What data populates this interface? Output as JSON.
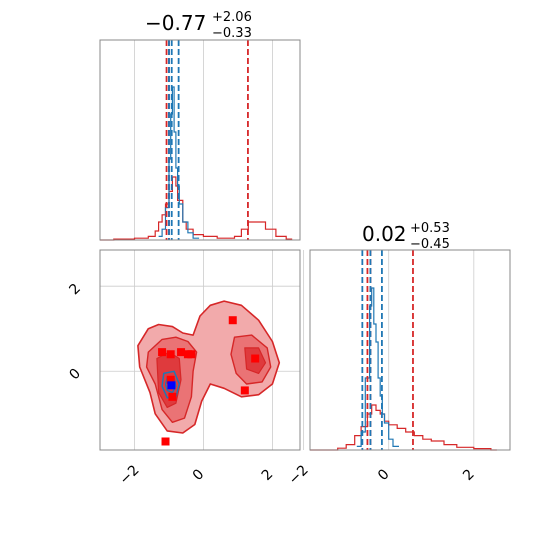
{
  "chart_data": {
    "type": "corner",
    "parameters": [
      {
        "title": {
          "value": "−0.77",
          "plus": "+2.06",
          "minus": "−0.33"
        }
      },
      {
        "title": {
          "value": "0.02",
          "plus": "+0.53",
          "minus": "−0.45"
        }
      }
    ],
    "xlim": [
      -3.0,
      2.8
    ],
    "ylim": [
      -1.85,
      2.85
    ],
    "ticks": [
      -2,
      0,
      2
    ],
    "tick_labels": [
      "−2",
      "0",
      "2"
    ],
    "grid": true,
    "colors": {
      "red": "#d62728",
      "blue": "#1f77b4",
      "fill_light": "#f2aaab",
      "fill_dark": "#df3a3d",
      "point_red": "#ff0000",
      "point_blue": "#0000ff"
    },
    "histogram_p1": {
      "red_steps": [
        [
          -3.0,
          0
        ],
        [
          -2.6,
          0.005
        ],
        [
          -2.0,
          0.01
        ],
        [
          -1.6,
          0.02
        ],
        [
          -1.4,
          0.05
        ],
        [
          -1.3,
          0.1
        ],
        [
          -1.2,
          0.14
        ],
        [
          -1.1,
          0.2
        ],
        [
          -1.0,
          0.27
        ],
        [
          -0.9,
          0.35
        ],
        [
          -0.8,
          0.3
        ],
        [
          -0.75,
          0.22
        ],
        [
          -0.6,
          0.1
        ],
        [
          -0.5,
          0.06
        ],
        [
          -0.3,
          0.03
        ],
        [
          0.0,
          0.02
        ],
        [
          0.4,
          0.01
        ],
        [
          0.9,
          0.02
        ],
        [
          1.1,
          0.06
        ],
        [
          1.3,
          0.1
        ],
        [
          1.5,
          0.1
        ],
        [
          1.8,
          0.06
        ],
        [
          2.1,
          0.02
        ],
        [
          2.4,
          0.005
        ]
      ],
      "blue_steps": [
        [
          -1.3,
          0.02
        ],
        [
          -1.2,
          0.06
        ],
        [
          -1.1,
          0.18
        ],
        [
          -1.0,
          0.45
        ],
        [
          -0.95,
          0.7
        ],
        [
          -0.9,
          0.85
        ],
        [
          -0.85,
          0.6
        ],
        [
          -0.8,
          0.4
        ],
        [
          -0.75,
          0.3
        ],
        [
          -0.7,
          0.2
        ],
        [
          -0.6,
          0.1
        ],
        [
          -0.45,
          0.04
        ],
        [
          -0.3,
          0.01
        ]
      ],
      "red_lines": [
        -1.07,
        -1.0,
        1.29
      ],
      "blue_lines": [
        -1.0,
        -0.92,
        -0.72
      ],
      "ymax": 1.0
    },
    "histogram_p2": {
      "red_steps": [
        [
          -1.85,
          0
        ],
        [
          -1.2,
          0.01
        ],
        [
          -1.0,
          0.03
        ],
        [
          -0.8,
          0.08
        ],
        [
          -0.65,
          0.13
        ],
        [
          -0.5,
          0.2
        ],
        [
          -0.4,
          0.25
        ],
        [
          -0.3,
          0.22
        ],
        [
          -0.2,
          0.2
        ],
        [
          -0.1,
          0.16
        ],
        [
          0.0,
          0.14
        ],
        [
          0.2,
          0.12
        ],
        [
          0.4,
          0.1
        ],
        [
          0.6,
          0.08
        ],
        [
          0.8,
          0.06
        ],
        [
          1.0,
          0.05
        ],
        [
          1.3,
          0.03
        ],
        [
          1.6,
          0.015
        ],
        [
          2.0,
          0.008
        ],
        [
          2.4,
          0.0
        ]
      ],
      "blue_steps": [
        [
          -0.75,
          0.02
        ],
        [
          -0.65,
          0.1
        ],
        [
          -0.55,
          0.4
        ],
        [
          -0.45,
          0.8
        ],
        [
          -0.4,
          0.9
        ],
        [
          -0.35,
          0.7
        ],
        [
          -0.3,
          0.6
        ],
        [
          -0.25,
          0.4
        ],
        [
          -0.2,
          0.3
        ],
        [
          -0.15,
          0.2
        ],
        [
          -0.1,
          0.15
        ],
        [
          0.0,
          0.06
        ],
        [
          0.1,
          0.02
        ]
      ],
      "red_lines": [
        -0.5,
        -0.43,
        0.57
      ],
      "blue_lines": [
        -0.62,
        -0.43,
        -0.16
      ],
      "ymax": 1.0
    },
    "scatter_red_points": [
      [
        -1.2,
        0.45
      ],
      [
        -0.95,
        0.4
      ],
      [
        -0.65,
        0.45
      ],
      [
        -0.45,
        0.4
      ],
      [
        -0.35,
        0.4
      ],
      [
        0.85,
        1.2
      ],
      [
        1.5,
        0.3
      ],
      [
        1.2,
        -0.45
      ],
      [
        -0.9,
        -0.6
      ],
      [
        -1.1,
        -1.65
      ],
      [
        -0.95,
        -0.2
      ]
    ],
    "scatter_blue_points": [
      [
        -0.93,
        -0.33
      ]
    ],
    "contours_red_outer": [
      [
        -1.9,
        0.6
      ],
      [
        -1.6,
        1.0
      ],
      [
        -1.3,
        1.1
      ],
      [
        -0.9,
        1.05
      ],
      [
        -0.6,
        0.9
      ],
      [
        -0.3,
        0.85
      ],
      [
        -0.1,
        1.3
      ],
      [
        0.2,
        1.55
      ],
      [
        0.6,
        1.65
      ],
      [
        1.1,
        1.55
      ],
      [
        1.6,
        1.2
      ],
      [
        2.0,
        0.7
      ],
      [
        2.2,
        0.2
      ],
      [
        2.0,
        -0.3
      ],
      [
        1.6,
        -0.55
      ],
      [
        1.1,
        -0.6
      ],
      [
        0.6,
        -0.4
      ],
      [
        0.2,
        -0.3
      ],
      [
        -0.05,
        -0.7
      ],
      [
        -0.25,
        -1.25
      ],
      [
        -0.6,
        -1.45
      ],
      [
        -1.05,
        -1.4
      ],
      [
        -1.4,
        -1.0
      ],
      [
        -1.55,
        -0.5
      ],
      [
        -1.85,
        0.1
      ]
    ],
    "contours_red_middle": [
      [
        -1.6,
        0.45
      ],
      [
        -1.2,
        0.75
      ],
      [
        -0.8,
        0.8
      ],
      [
        -0.45,
        0.7
      ],
      [
        -0.2,
        0.45
      ],
      [
        -0.3,
        0.0
      ],
      [
        -0.35,
        -0.6
      ],
      [
        -0.55,
        -1.1
      ],
      [
        -0.9,
        -1.2
      ],
      [
        -1.2,
        -0.9
      ],
      [
        -1.4,
        -0.3
      ],
      [
        -1.65,
        0.1
      ]
    ],
    "contours_red_middle_right": [
      [
        0.9,
        0.8
      ],
      [
        1.4,
        0.85
      ],
      [
        1.85,
        0.55
      ],
      [
        1.95,
        0.1
      ],
      [
        1.7,
        -0.25
      ],
      [
        1.25,
        -0.3
      ],
      [
        0.95,
        -0.05
      ],
      [
        0.8,
        0.4
      ]
    ],
    "contours_red_inner": [
      [
        -1.35,
        0.3
      ],
      [
        -1.0,
        0.45
      ],
      [
        -0.7,
        0.3
      ],
      [
        -0.65,
        -0.2
      ],
      [
        -0.8,
        -0.75
      ],
      [
        -1.05,
        -0.85
      ],
      [
        -1.3,
        -0.5
      ]
    ],
    "contours_red_inner_right": [
      [
        1.2,
        0.55
      ],
      [
        1.6,
        0.55
      ],
      [
        1.8,
        0.2
      ],
      [
        1.6,
        -0.05
      ],
      [
        1.25,
        0.05
      ]
    ],
    "contours_blue": [
      [
        -1.15,
        -0.05
      ],
      [
        -0.85,
        0.0
      ],
      [
        -0.7,
        -0.3
      ],
      [
        -0.8,
        -0.6
      ],
      [
        -1.05,
        -0.62
      ],
      [
        -1.2,
        -0.35
      ]
    ],
    "contours_blue_inner": [
      [
        -1.05,
        -0.15
      ],
      [
        -0.85,
        -0.15
      ],
      [
        -0.8,
        -0.35
      ],
      [
        -0.9,
        -0.5
      ],
      [
        -1.05,
        -0.45
      ],
      [
        -1.1,
        -0.3
      ]
    ]
  }
}
